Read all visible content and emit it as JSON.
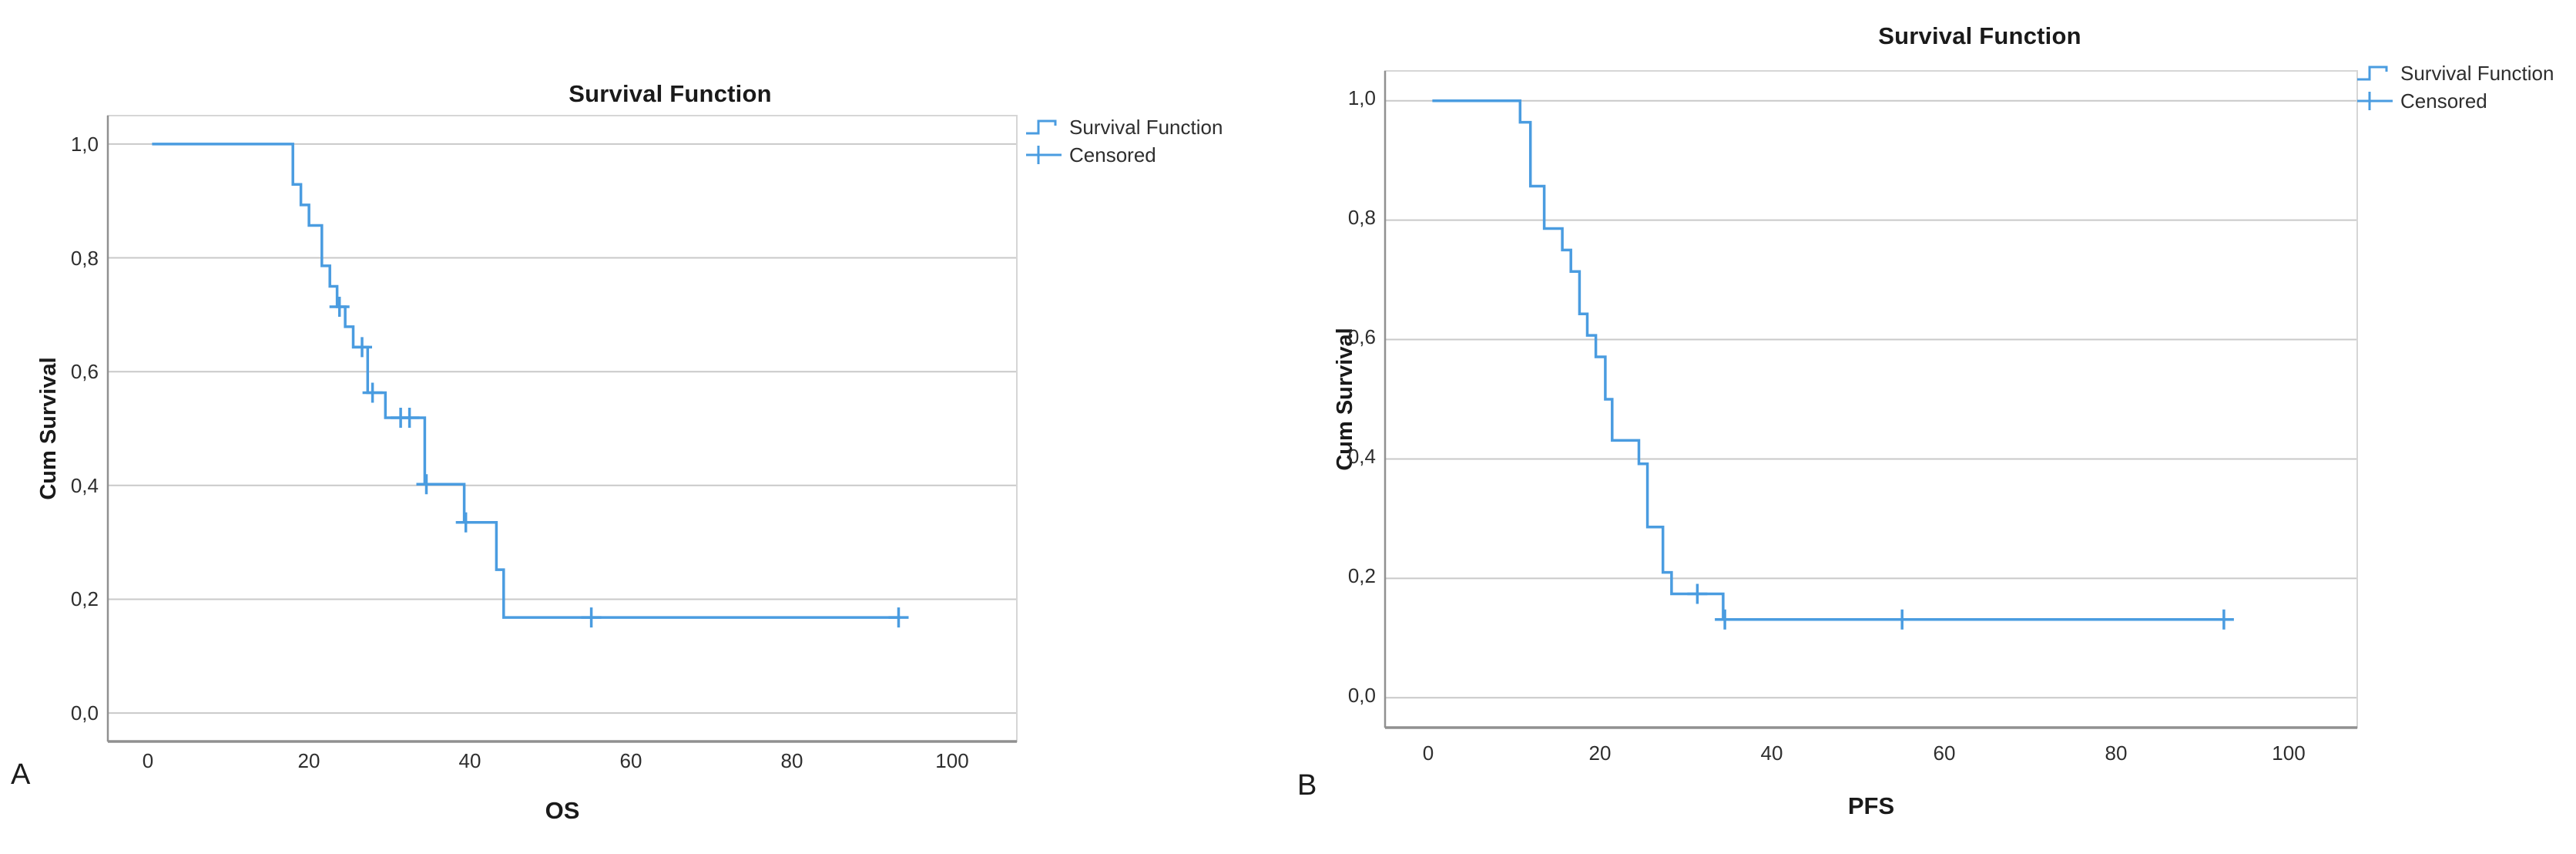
{
  "colors": {
    "curve": "#4a9ce0",
    "grid": "#c9c9c9",
    "axis": "#909090",
    "frame": "#d6d6d6",
    "text": "#1f1f1f"
  },
  "chart_data": [
    {
      "panel_label": "A",
      "type": "step",
      "title": "Survival Function",
      "xlabel": "OS",
      "ylabel": "Cum Survival",
      "xlim": [
        -5,
        108
      ],
      "ylim": [
        -0.05,
        1.05
      ],
      "x_ticks": [
        0,
        20,
        40,
        60,
        80,
        100
      ],
      "x_tick_labels": [
        "0",
        "20",
        "40",
        "60",
        "80",
        "100"
      ],
      "y_ticks": [
        1.0,
        0.8,
        0.6,
        0.4,
        0.2,
        0.0
      ],
      "y_tick_labels": [
        "1,0",
        "0,8",
        "0,6",
        "0,4",
        "0,2",
        "0,0"
      ],
      "grid": "horizontal",
      "legend_position": "top-right-outside",
      "legend": [
        {
          "label": "Survival Function",
          "symbol": "step-line"
        },
        {
          "label": "Censored",
          "symbol": "plus"
        }
      ],
      "series": [
        {
          "name": "Survival Function",
          "steps": [
            [
              0.5,
              1.0
            ],
            [
              18,
              1.0
            ],
            [
              18,
              0.929
            ],
            [
              19,
              0.929
            ],
            [
              19,
              0.893
            ],
            [
              20,
              0.893
            ],
            [
              20,
              0.857
            ],
            [
              21.6,
              0.857
            ],
            [
              21.6,
              0.786
            ],
            [
              22.6,
              0.786
            ],
            [
              22.6,
              0.75
            ],
            [
              23.5,
              0.75
            ],
            [
              23.5,
              0.714
            ],
            [
              24.5,
              0.714
            ],
            [
              24.5,
              0.679
            ],
            [
              25.5,
              0.679
            ],
            [
              25.5,
              0.643
            ],
            [
              27.3,
              0.643
            ],
            [
              27.3,
              0.563
            ],
            [
              29.5,
              0.563
            ],
            [
              29.5,
              0.519
            ],
            [
              34.4,
              0.519
            ],
            [
              34.4,
              0.402
            ],
            [
              39.3,
              0.402
            ],
            [
              39.3,
              0.335
            ],
            [
              43.3,
              0.335
            ],
            [
              43.3,
              0.252
            ],
            [
              44.2,
              0.252
            ],
            [
              44.2,
              0.168
            ],
            [
              93.5,
              0.168
            ]
          ]
        }
      ],
      "censored": [
        [
          23.8,
          0.714
        ],
        [
          26.6,
          0.643
        ],
        [
          27.9,
          0.563
        ],
        [
          31.4,
          0.519
        ],
        [
          32.5,
          0.519
        ],
        [
          34.6,
          0.402
        ],
        [
          39.5,
          0.335
        ],
        [
          55.1,
          0.168
        ],
        [
          93.3,
          0.168
        ]
      ]
    },
    {
      "panel_label": "B",
      "type": "step",
      "title": "Survival Function",
      "xlabel": "PFS",
      "ylabel": "Cum Survival",
      "xlim": [
        -5,
        108
      ],
      "ylim": [
        -0.05,
        1.05
      ],
      "x_ticks": [
        0,
        20,
        40,
        60,
        80,
        100
      ],
      "x_tick_labels": [
        "0",
        "20",
        "40",
        "60",
        "80",
        "100"
      ],
      "y_ticks": [
        1.0,
        0.8,
        0.6,
        0.4,
        0.2,
        0.0
      ],
      "y_tick_labels": [
        "1,0",
        "0,8",
        "0,6",
        "0,4",
        "0,2",
        "0,0"
      ],
      "grid": "horizontal",
      "legend_position": "top-right-outside",
      "legend": [
        {
          "label": "Survival Function",
          "symbol": "step-line"
        },
        {
          "label": "Censored",
          "symbol": "plus"
        }
      ],
      "series": [
        {
          "name": "Survival Function",
          "steps": [
            [
              0.5,
              1.0
            ],
            [
              10.7,
              1.0
            ],
            [
              10.7,
              0.964
            ],
            [
              11.9,
              0.964
            ],
            [
              11.9,
              0.857
            ],
            [
              13.5,
              0.857
            ],
            [
              13.5,
              0.786
            ],
            [
              15.6,
              0.786
            ],
            [
              15.6,
              0.75
            ],
            [
              16.6,
              0.75
            ],
            [
              16.6,
              0.714
            ],
            [
              17.6,
              0.714
            ],
            [
              17.6,
              0.643
            ],
            [
              18.5,
              0.643
            ],
            [
              18.5,
              0.607
            ],
            [
              19.5,
              0.607
            ],
            [
              19.5,
              0.571
            ],
            [
              20.6,
              0.571
            ],
            [
              20.6,
              0.5
            ],
            [
              21.4,
              0.5
            ],
            [
              21.4,
              0.431
            ],
            [
              24.5,
              0.431
            ],
            [
              24.5,
              0.392
            ],
            [
              25.5,
              0.392
            ],
            [
              25.5,
              0.286
            ],
            [
              27.3,
              0.286
            ],
            [
              27.3,
              0.21
            ],
            [
              28.3,
              0.21
            ],
            [
              28.3,
              0.174
            ],
            [
              34.3,
              0.174
            ],
            [
              34.3,
              0.131
            ],
            [
              93,
              0.131
            ]
          ]
        }
      ],
      "censored": [
        [
          31.3,
          0.174
        ],
        [
          34.5,
          0.131
        ],
        [
          55.1,
          0.131
        ],
        [
          92.5,
          0.131
        ]
      ]
    }
  ]
}
